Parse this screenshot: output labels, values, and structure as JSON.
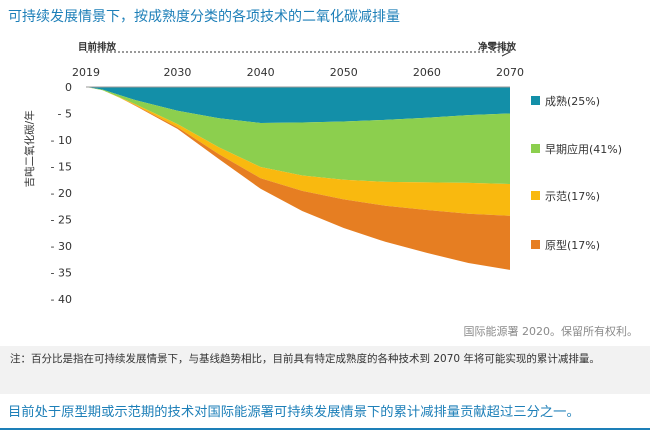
{
  "title": "可持续发展情景下，按成熟度分类的各项技术的二氧化碳减排量",
  "chart_data": {
    "type": "area",
    "stacked": true,
    "ylabel": "吉吨二氧化碳/年",
    "xlim": [
      2019,
      2070
    ],
    "ylim": [
      -40,
      0
    ],
    "yticks": [
      0,
      -5,
      -10,
      -15,
      -20,
      -25,
      -30,
      -35,
      -40
    ],
    "xticks": [
      2019,
      2030,
      2040,
      2050,
      2060,
      2070
    ],
    "x": [
      2019,
      2021,
      2023,
      2025,
      2030,
      2035,
      2040,
      2045,
      2050,
      2055,
      2060,
      2065,
      2070
    ],
    "series": [
      {
        "name": "成熟",
        "legend": "成熟(25%)",
        "color": "#138fa8",
        "values": [
          0,
          -0.5,
          -1.5,
          -2.5,
          -4.5,
          -5.9,
          -6.8,
          -6.7,
          -6.5,
          -6.2,
          -5.8,
          -5.3,
          -5.0
        ]
      },
      {
        "name": "早期应用",
        "legend": "早期应用(41%)",
        "color": "#8ccf4e",
        "values": [
          0,
          -0.1,
          -0.4,
          -0.8,
          -2.5,
          -5.5,
          -8.3,
          -10.0,
          -11.0,
          -11.7,
          -12.2,
          -12.8,
          -13.3
        ]
      },
      {
        "name": "示范",
        "legend": "示范(17%)",
        "color": "#f9b90f",
        "values": [
          0,
          0,
          -0.1,
          -0.2,
          -0.6,
          -1.3,
          -2.1,
          -2.9,
          -3.7,
          -4.5,
          -5.2,
          -5.8,
          -6.0
        ]
      },
      {
        "name": "原型",
        "legend": "原型(17%)",
        "color": "#e67e22",
        "values": [
          0,
          0,
          0,
          -0.1,
          -0.3,
          -0.9,
          -2.0,
          -3.8,
          -5.4,
          -6.8,
          -8.1,
          -9.3,
          -10.2
        ]
      }
    ],
    "annotations": {
      "start_label": "目前排放",
      "end_label": "净零排放"
    },
    "grid": false
  },
  "copyright": "国际能源署 2020。保留所有权利。",
  "note": "注：百分比是指在可持续发展情景下，与基线趋势相比，目前具有特定成熟度的各种技术到 2070 年将可能实现的累计减排量。",
  "takeaway": "目前处于原型期或示范期的技术对国际能源署可持续发展情景下的累计减排量贡献超过三分之一。"
}
